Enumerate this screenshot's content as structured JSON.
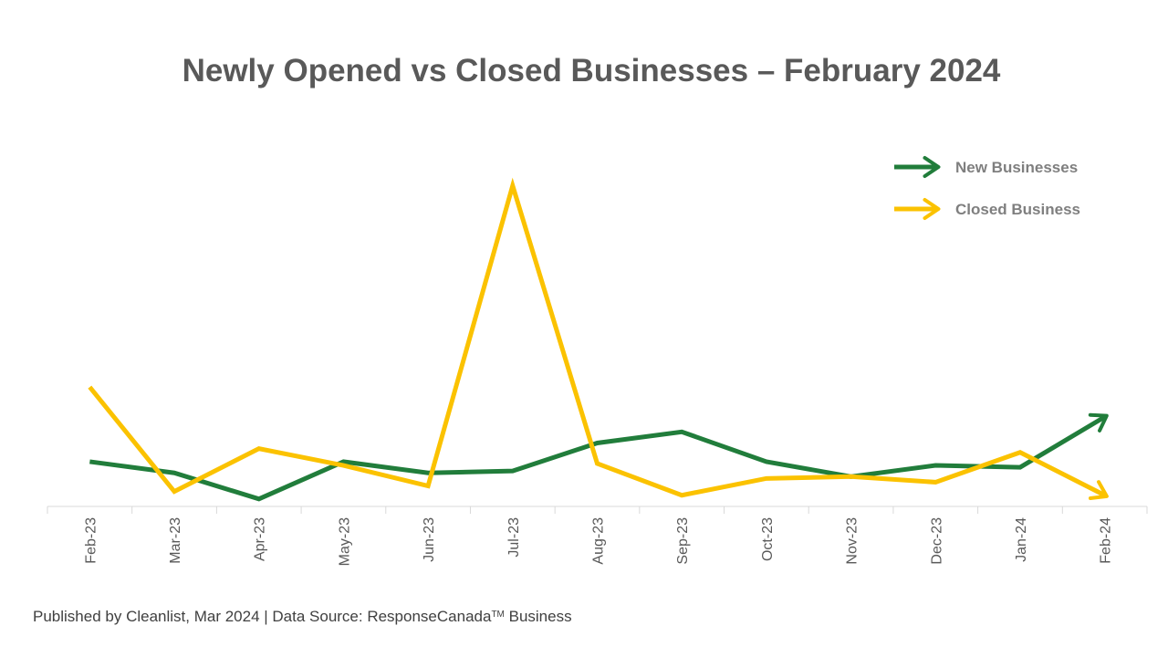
{
  "chart_data": {
    "type": "line",
    "title": "Newly Opened vs Closed Businesses – February 2024",
    "categories": [
      "Feb-23",
      "Mar-23",
      "Apr-23",
      "May-23",
      "Jun-23",
      "Jul-23",
      "Aug-23",
      "Sep-23",
      "Oct-23",
      "Nov-23",
      "Dec-23",
      "Jan-24",
      "Feb-24"
    ],
    "series": [
      {
        "name": "New Businesses",
        "color": "#217d3b",
        "values": [
          12,
          9,
          2,
          12,
          9,
          9.5,
          17,
          20,
          12,
          8,
          11,
          10.5,
          24
        ]
      },
      {
        "name": "Closed Business",
        "color": "#fbc200",
        "values": [
          32,
          4,
          15.5,
          11,
          5.5,
          86,
          11.5,
          3,
          7.5,
          8,
          6.5,
          14.5,
          3
        ]
      }
    ],
    "ylim": [
      0,
      90
    ],
    "grid": false,
    "legend_position": "top-right"
  },
  "footer": {
    "text_before": "Published by Cleanlist, Mar 2024 | Data Source: ResponseCanada",
    "tm": "TM",
    "text_after": " Business"
  }
}
